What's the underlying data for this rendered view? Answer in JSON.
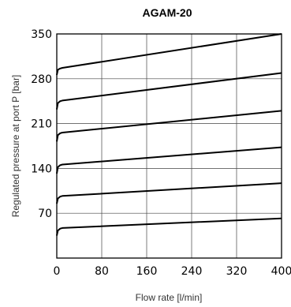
{
  "chart_data": {
    "type": "line",
    "title": "AGAM-20",
    "xlabel": "Flow rate [l/min]",
    "ylabel": "Regulated pressure at port P [bar]",
    "xlim": [
      0,
      400
    ],
    "ylim": [
      0,
      350
    ],
    "xticks": [
      0,
      80,
      160,
      240,
      320,
      400
    ],
    "yticks": [
      70,
      140,
      210,
      280,
      350
    ],
    "x_tick_labels": [
      "0",
      "80",
      "160",
      "240",
      "320",
      "400"
    ],
    "y_tick_labels": [
      "70",
      "140",
      "210",
      "280",
      "350"
    ],
    "grid": true,
    "series": [
      {
        "x": [
          0,
          2,
          6,
          10,
          400
        ],
        "values": [
          35,
          43,
          46,
          47,
          62
        ]
      },
      {
        "x": [
          0,
          2,
          6,
          10,
          400
        ],
        "values": [
          85,
          93,
          96,
          97,
          117
        ]
      },
      {
        "x": [
          0,
          2,
          6,
          10,
          400
        ],
        "values": [
          132,
          142,
          145,
          146,
          173
        ]
      },
      {
        "x": [
          0,
          2,
          6,
          10,
          400
        ],
        "values": [
          182,
          192,
          195,
          196,
          230
        ]
      },
      {
        "x": [
          0,
          2,
          6,
          10,
          400
        ],
        "values": [
          232,
          242,
          245,
          246,
          289
        ]
      },
      {
        "x": [
          0,
          2,
          6,
          10,
          400
        ],
        "values": [
          286,
          294,
          296,
          297,
          350
        ]
      }
    ]
  }
}
